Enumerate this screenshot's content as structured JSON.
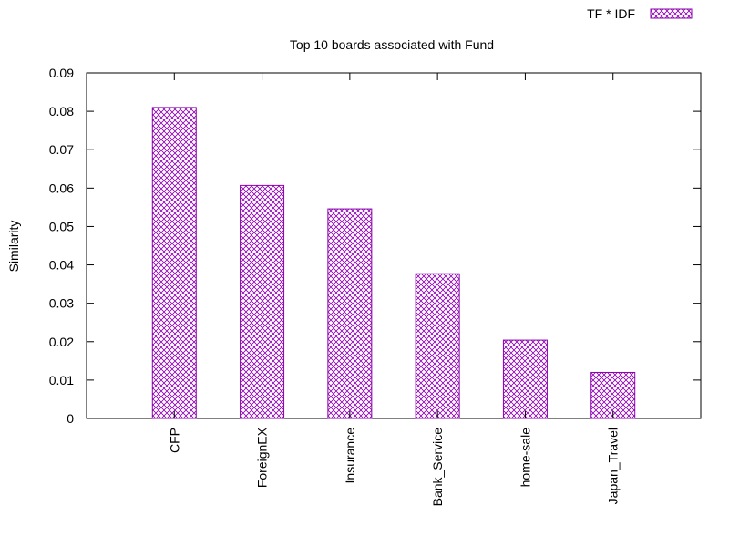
{
  "chart_data": {
    "type": "bar",
    "title": "Top 10 boards associated with Fund",
    "xlabel": "",
    "ylabel": "Similarity",
    "categories": [
      "CFP",
      "ForeignEX",
      "Insurance",
      "Bank_Service",
      "home-sale",
      "Japan_Travel"
    ],
    "series": [
      {
        "name": "TF * IDF",
        "values": [
          0.081,
          0.0607,
          0.0546,
          0.0377,
          0.0204,
          0.012
        ]
      }
    ],
    "ylim": [
      0,
      0.09
    ],
    "yticks": [
      "0",
      "0.01",
      "0.02",
      "0.03",
      "0.04",
      "0.05",
      "0.06",
      "0.07",
      "0.08",
      "0.09"
    ],
    "grid": false,
    "legend_position": "top-right",
    "bar_fill": "crosshatch",
    "colors": {
      "bar_stroke": "#8b00b0",
      "axis": "#000000"
    }
  }
}
